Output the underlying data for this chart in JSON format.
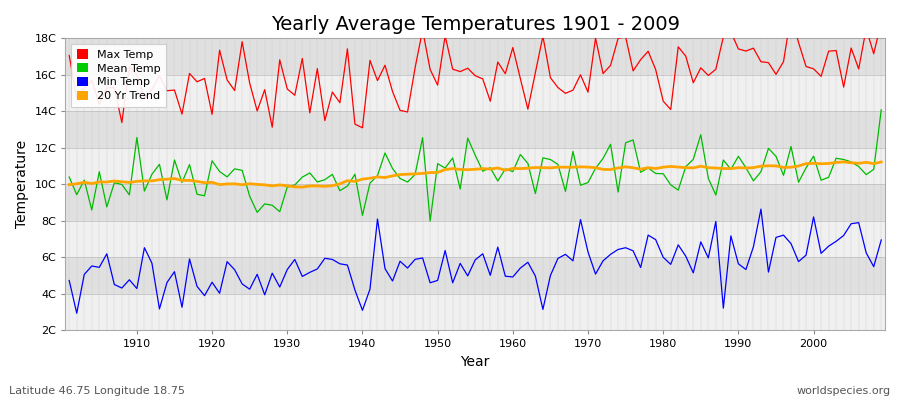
{
  "title": "Yearly Average Temperatures 1901 - 2009",
  "xlabel": "Year",
  "ylabel": "Temperature",
  "footnote_left": "Latitude 46.75 Longitude 18.75",
  "footnote_right": "worldspecies.org",
  "year_start": 1901,
  "year_end": 2009,
  "ylim": [
    2,
    18
  ],
  "yticks": [
    2,
    4,
    6,
    8,
    10,
    12,
    14,
    16,
    18
  ],
  "ytick_labels": [
    "2C",
    "4C",
    "6C",
    "8C",
    "10C",
    "12C",
    "14C",
    "16C",
    "18C"
  ],
  "xticks": [
    1910,
    1920,
    1930,
    1940,
    1950,
    1960,
    1970,
    1980,
    1990,
    2000
  ],
  "legend_labels": [
    "Max Temp",
    "Mean Temp",
    "Min Temp",
    "20 Yr Trend"
  ],
  "legend_colors": [
    "#ff0000",
    "#00cc00",
    "#0000ff",
    "#ffa500"
  ],
  "max_temp_color": "#ff0000",
  "mean_temp_color": "#00bb00",
  "min_temp_color": "#0000ff",
  "trend_color": "#ffa500",
  "figure_bg": "#ffffff",
  "plot_bg": "#e8e8e8",
  "band_color_light": "#f0f0f0",
  "band_color_dark": "#e0e0e0",
  "grid_color": "#d0d0d0",
  "title_fontsize": 14,
  "axis_label_fontsize": 10,
  "tick_fontsize": 8,
  "footnote_fontsize": 8
}
